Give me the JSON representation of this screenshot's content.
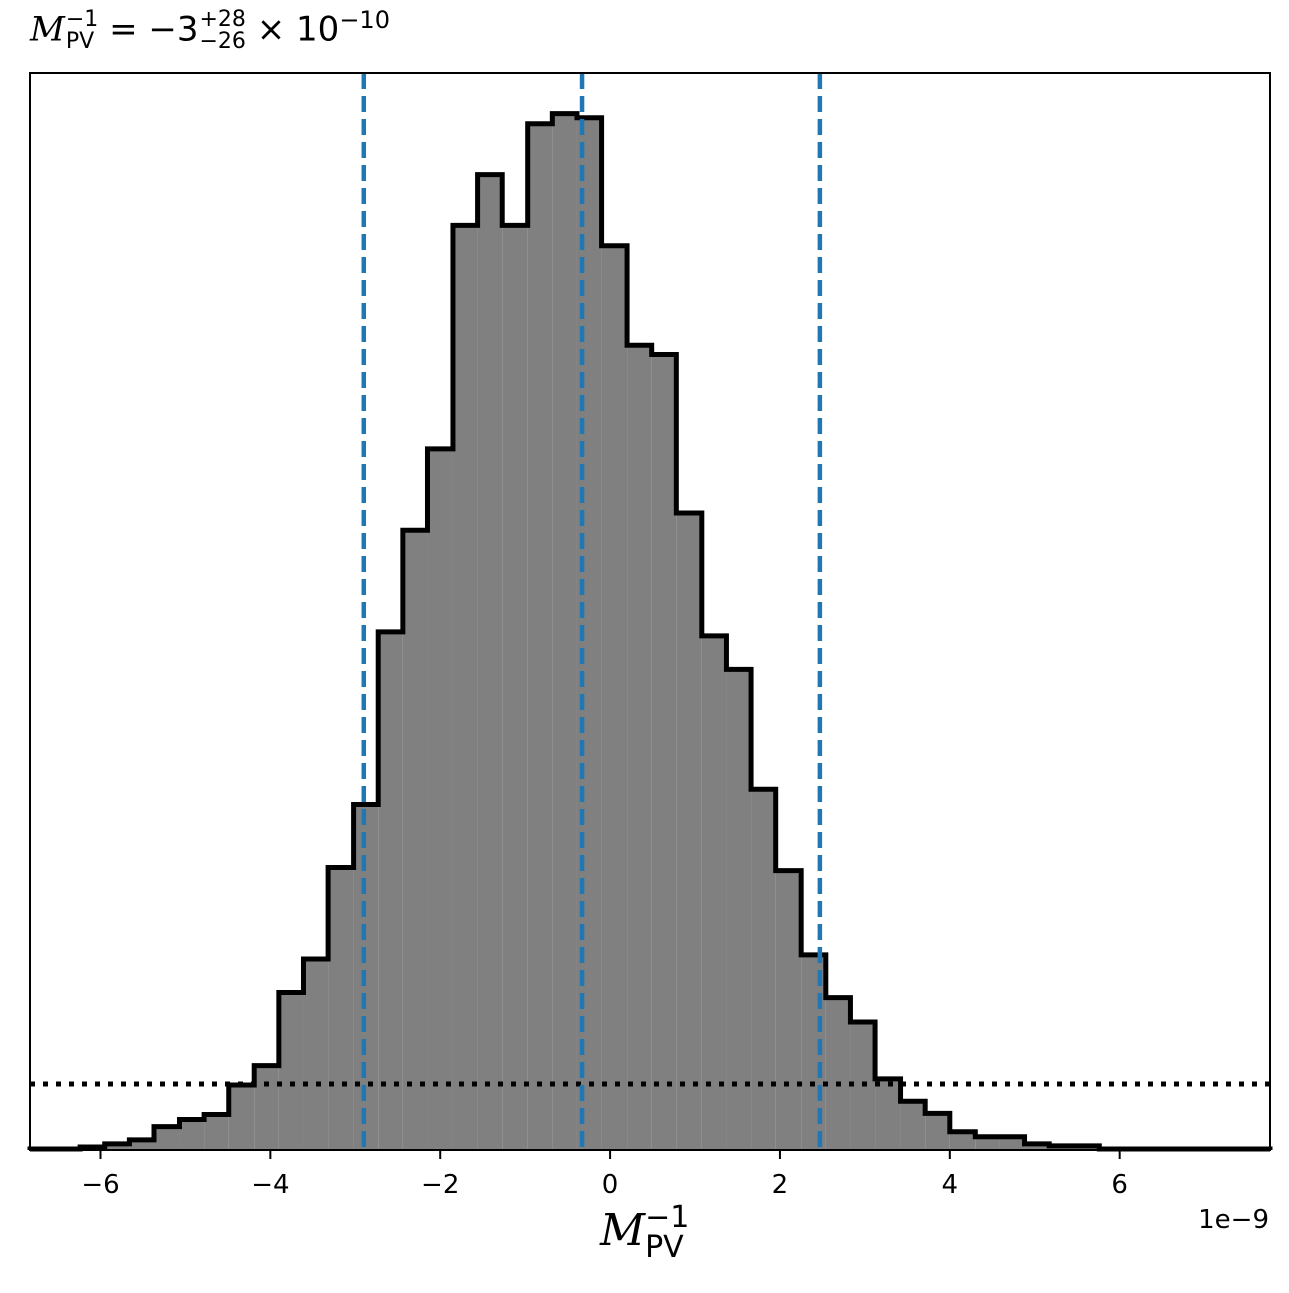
{
  "title": {
    "var": "M",
    "var_sub": "PV",
    "var_sup": "−1",
    "equals": " = ",
    "value": "−3",
    "plus": "+28",
    "minus": "−26",
    "times": " × 10",
    "exp": "−10"
  },
  "xlabel": {
    "var": "M",
    "sub": "PV",
    "sup": "−1"
  },
  "offset_text": "1e−9",
  "chart_data": {
    "type": "histogram",
    "xlim": [
      -6.83,
      7.77
    ],
    "x_scale": "1e-9",
    "xticks": [
      -6,
      -4,
      -2,
      0,
      2,
      4,
      6
    ],
    "xtick_labels": [
      "−6",
      "−4",
      "−2",
      "0",
      "2",
      "4",
      "6"
    ],
    "bin_edges": [
      -6.83,
      -6.54,
      -6.24,
      -5.95,
      -5.66,
      -5.37,
      -5.07,
      -4.78,
      -4.49,
      -4.19,
      -3.9,
      -3.61,
      -3.32,
      -3.02,
      -2.73,
      -2.44,
      -2.15,
      -1.85,
      -1.56,
      -1.27,
      -0.97,
      -0.68,
      -0.39,
      -0.1,
      0.2,
      0.49,
      0.78,
      1.08,
      1.37,
      1.66,
      1.95,
      2.25,
      2.54,
      2.83,
      3.12,
      3.42,
      3.71,
      4.0,
      4.3,
      4.59,
      4.88,
      5.17,
      5.47,
      5.76,
      6.05,
      6.35,
      6.64,
      6.93,
      7.22,
      7.52,
      7.77
    ],
    "counts": [
      0.1,
      0.1,
      0.3,
      0.6,
      1.0,
      2.3,
      3.0,
      3.5,
      6.4,
      8.3,
      15.5,
      18.8,
      27.8,
      34.0,
      51.0,
      61.0,
      69.0,
      91.0,
      96.0,
      91.0,
      101.0,
      102.0,
      101.6,
      89.0,
      79.2,
      78.3,
      62.7,
      50.6,
      47.3,
      35.5,
      27.5,
      19.2,
      15.0,
      12.6,
      7.0,
      4.8,
      3.6,
      1.8,
      1.3,
      1.3,
      0.6,
      0.4,
      0.4,
      0.1,
      0.1,
      0.1,
      0.1,
      0.1,
      0.1,
      0.1
    ],
    "ylim": [
      0,
      106
    ],
    "hist_fill": "#808080",
    "hist_edge": "#000000",
    "quantile_lines": [
      -2.9,
      -0.33,
      2.47
    ],
    "quantile_color": "#1f77b4",
    "prior_level": 6.5,
    "prior_style": "dotted"
  }
}
